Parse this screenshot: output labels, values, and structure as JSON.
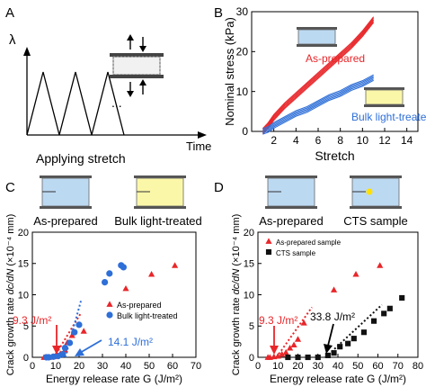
{
  "panels": {
    "A": {
      "letter": "A",
      "ylabel": "λ",
      "xlabel": "Time",
      "caption": "Applying stretch",
      "ellipsis": "...",
      "triangle_peaks": 3
    },
    "C": {
      "letter": "C",
      "schematic_labels": [
        "As-prepared",
        "Bulk light-treated"
      ],
      "annotations": [
        "9.3 J/m²",
        "14.1 J/m²"
      ]
    },
    "D": {
      "letter": "D",
      "schematic_labels": [
        "As-prepared",
        "CTS sample"
      ],
      "annotations": [
        "9.3 J/m²",
        "33.8 J/m²"
      ]
    }
  },
  "colors": {
    "red": "#e8262a",
    "blue": "#2e6fd8",
    "black": "#111111",
    "gel_blue": "#bcd9f2",
    "gel_yellow": "#fbf7a8"
  },
  "chart_data": [
    {
      "panel": "B",
      "letter": "B",
      "type": "line",
      "xlabel": "Stretch",
      "ylabel": "Nominal stress (kPa)",
      "xlim": [
        0,
        15
      ],
      "ylim": [
        0,
        30
      ],
      "xticks": [
        2,
        4,
        6,
        8,
        10,
        12,
        14
      ],
      "yticks": [
        0,
        10,
        20,
        30
      ],
      "series": [
        {
          "name": "As-prepared",
          "color": "#e8262a",
          "x": [
            1,
            1.5,
            2,
            3,
            4,
            5,
            6,
            7,
            8,
            9,
            10,
            11
          ],
          "y": [
            0,
            1.5,
            3.5,
            6.5,
            9,
            11.5,
            14,
            16.5,
            19,
            21.5,
            24.5,
            28
          ]
        },
        {
          "name": "Bulk light-treated",
          "color": "#2e6fd8",
          "x": [
            1,
            1.5,
            2,
            3,
            4,
            5,
            6,
            7,
            8,
            9,
            10,
            11
          ],
          "y": [
            0,
            0.5,
            1.5,
            3,
            4.5,
            5.5,
            7,
            8.5,
            9.5,
            11,
            12,
            13.5
          ]
        }
      ]
    },
    {
      "panel": "C",
      "letter": "C",
      "type": "scatter",
      "xlabel": "Energy release rate G (J/m²)",
      "ylabel": "Crack growth rate dc/dN (×10⁻⁴ mm)",
      "xlim": [
        0,
        70
      ],
      "ylim": [
        0,
        20
      ],
      "xticks": [
        0,
        10,
        20,
        30,
        40,
        50,
        60,
        70
      ],
      "yticks": [
        0,
        5,
        10,
        15,
        20
      ],
      "legend": "bottom-right",
      "series": [
        {
          "name": "As-prepared",
          "color": "#e8262a",
          "marker": "triangle",
          "x": [
            5,
            7,
            9,
            10,
            12,
            14,
            15,
            17,
            22,
            40,
            51,
            61
          ],
          "y": [
            0,
            0,
            0.1,
            0.3,
            0.6,
            1.2,
            2.4,
            3.5,
            4.2,
            11,
            13.3,
            14.7
          ]
        },
        {
          "name": "Bulk light-treated",
          "color": "#2e6fd8",
          "marker": "circle",
          "x": [
            6,
            7,
            9,
            11,
            13,
            14,
            16,
            18,
            20,
            31,
            33,
            38,
            39
          ],
          "y": [
            0,
            0,
            0.1,
            0.2,
            0.5,
            1.5,
            2.3,
            4.0,
            5.2,
            12,
            13.4,
            14.7,
            14.4
          ]
        }
      ],
      "fits": [
        {
          "color": "#e8262a",
          "x": [
            9.3,
            21
          ],
          "y": [
            0,
            7.2
          ]
        },
        {
          "color": "#2e6fd8",
          "x": [
            14.1,
            21
          ],
          "y": [
            0,
            9.3
          ]
        }
      ]
    },
    {
      "panel": "D",
      "letter": "D",
      "type": "scatter",
      "xlabel": "Energy release rate G (J/m²)",
      "ylabel": "Crack growth rate dc/dN (×10⁻⁴ mm)",
      "xlim": [
        0,
        80
      ],
      "ylim": [
        0,
        20
      ],
      "xticks": [
        0,
        10,
        20,
        30,
        40,
        50,
        60,
        70,
        80
      ],
      "yticks": [
        0,
        5,
        10,
        15,
        20
      ],
      "legend": "top-left",
      "series": [
        {
          "name": "As-prepared sample",
          "color": "#e8262a",
          "marker": "triangle",
          "x": [
            5,
            6,
            8,
            10,
            12,
            14,
            16,
            18,
            20,
            23,
            38,
            49,
            61
          ],
          "y": [
            0,
            0,
            0.1,
            0.2,
            0.5,
            0.8,
            1.5,
            2.0,
            2.9,
            5.5,
            10.8,
            13.3,
            14.7
          ]
        },
        {
          "name": "CTS sample",
          "color": "#111111",
          "marker": "square",
          "x": [
            15,
            20,
            25,
            30,
            35,
            38,
            41,
            45,
            48,
            53,
            58,
            63,
            66,
            72
          ],
          "y": [
            0,
            0,
            0,
            0,
            0.3,
            0.7,
            1.7,
            2.2,
            3.0,
            4.0,
            5.8,
            7.0,
            7.8,
            9.5
          ]
        }
      ],
      "fits": [
        {
          "color": "#e8262a",
          "x": [
            9.3,
            27
          ],
          "y": [
            0,
            8.0
          ]
        },
        {
          "color": "#111111",
          "x": [
            33.8,
            62
          ],
          "y": [
            0,
            8.4
          ]
        }
      ]
    }
  ]
}
